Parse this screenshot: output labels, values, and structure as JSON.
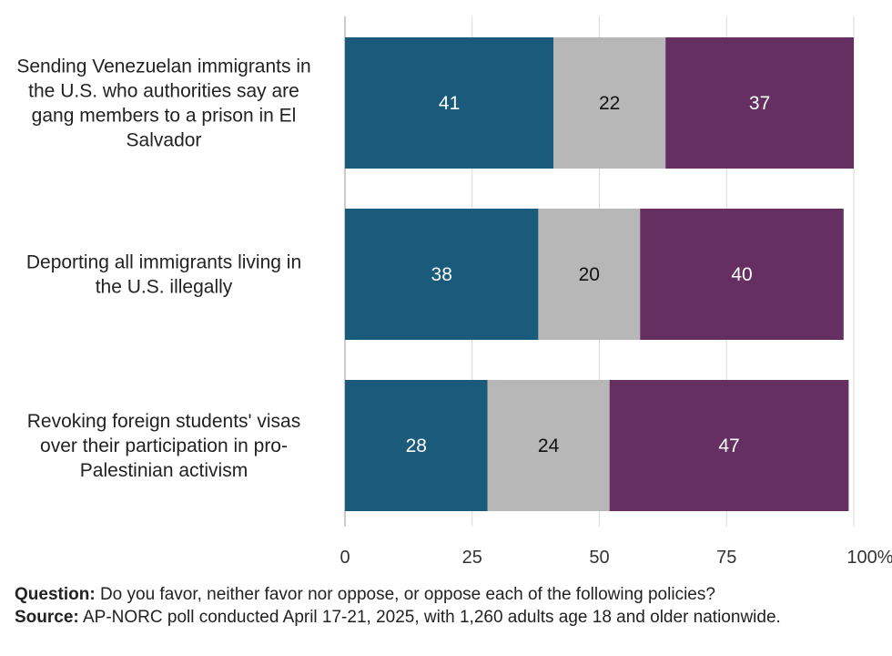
{
  "chart_data": {
    "type": "bar",
    "orientation": "horizontal",
    "stacked": true,
    "categories": [
      "Sending Venezuelan immigrants in the U.S. who authorities say are gang members to a prison in El Salvador",
      "Deporting all immigrants living in the U.S. illegally",
      "Revoking foreign students' visas over their participation in pro-Palestinian activism"
    ],
    "category_lines": [
      [
        "Sending Venezuelan immigrants in",
        "the U.S. who authorities say are",
        "gang members to a prison in El",
        "Salvador"
      ],
      [
        "Deporting all immigrants living in",
        "the U.S. illegally"
      ],
      [
        "Revoking foreign students' visas",
        "over their participation in pro-",
        "Palestinian activism"
      ]
    ],
    "series": [
      {
        "color": "#1a5a7a",
        "label_color": "#ffffff",
        "values": [
          41,
          38,
          28
        ]
      },
      {
        "color": "#b7b7b7",
        "label_color": "#111111",
        "values": [
          22,
          20,
          24
        ]
      },
      {
        "color": "#652f62",
        "label_color": "#ffffff",
        "values": [
          37,
          40,
          47
        ]
      }
    ],
    "xlim": [
      0,
      100
    ],
    "xticks": [
      "0",
      "25",
      "50",
      "75",
      "100%"
    ],
    "xtick_values": [
      0,
      25,
      50,
      75,
      100
    ],
    "grid": true,
    "legend": "none"
  },
  "footer": {
    "question_label": "Question:",
    "question_text": " Do you favor, neither favor nor oppose, or oppose each of the following policies?",
    "source_label": "Source:",
    "source_text": " AP-NORC poll conducted April 17-21, 2025, with 1,260 adults age 18 and older nationwide."
  }
}
